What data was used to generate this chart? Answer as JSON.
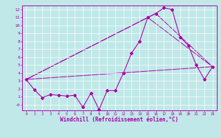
{
  "title": "",
  "xlabel": "Windchill (Refroidissement éolien,°C)",
  "ylabel": "",
  "bg_color": "#c0e8e8",
  "line_color": "#aa00aa",
  "grid_color": "#ffffff",
  "ylim": [
    -0.7,
    12.5
  ],
  "xlim": [
    -0.5,
    23.5
  ],
  "yticks": [
    0,
    1,
    2,
    3,
    4,
    5,
    6,
    7,
    8,
    9,
    10,
    11,
    12
  ],
  "xticks": [
    0,
    1,
    2,
    3,
    4,
    5,
    6,
    7,
    8,
    9,
    10,
    11,
    12,
    13,
    14,
    15,
    16,
    17,
    18,
    19,
    20,
    21,
    22,
    23
  ],
  "ytick_labels": [
    "-0",
    "1",
    "2",
    "3",
    "4",
    "5",
    "6",
    "7",
    "8",
    "9",
    "10",
    "11",
    "12"
  ],
  "line1_x": [
    0,
    1,
    2,
    3,
    4,
    5,
    6,
    7,
    8,
    9,
    10,
    11,
    12,
    13,
    14,
    15,
    16,
    17,
    18,
    19,
    20,
    21,
    22,
    23
  ],
  "line1_y": [
    3.2,
    1.9,
    0.9,
    1.3,
    1.2,
    1.1,
    1.2,
    -0.3,
    1.5,
    -0.6,
    1.8,
    1.8,
    4.0,
    6.5,
    8.0,
    11.0,
    11.5,
    12.2,
    12.0,
    8.5,
    7.5,
    5.0,
    3.2,
    4.8
  ],
  "line2_x": [
    0,
    23
  ],
  "line2_y": [
    3.2,
    4.8
  ],
  "line3_x": [
    0,
    16,
    23
  ],
  "line3_y": [
    3.2,
    11.5,
    4.8
  ],
  "line4_x": [
    0,
    15,
    23
  ],
  "line4_y": [
    3.2,
    11.0,
    4.8
  ]
}
